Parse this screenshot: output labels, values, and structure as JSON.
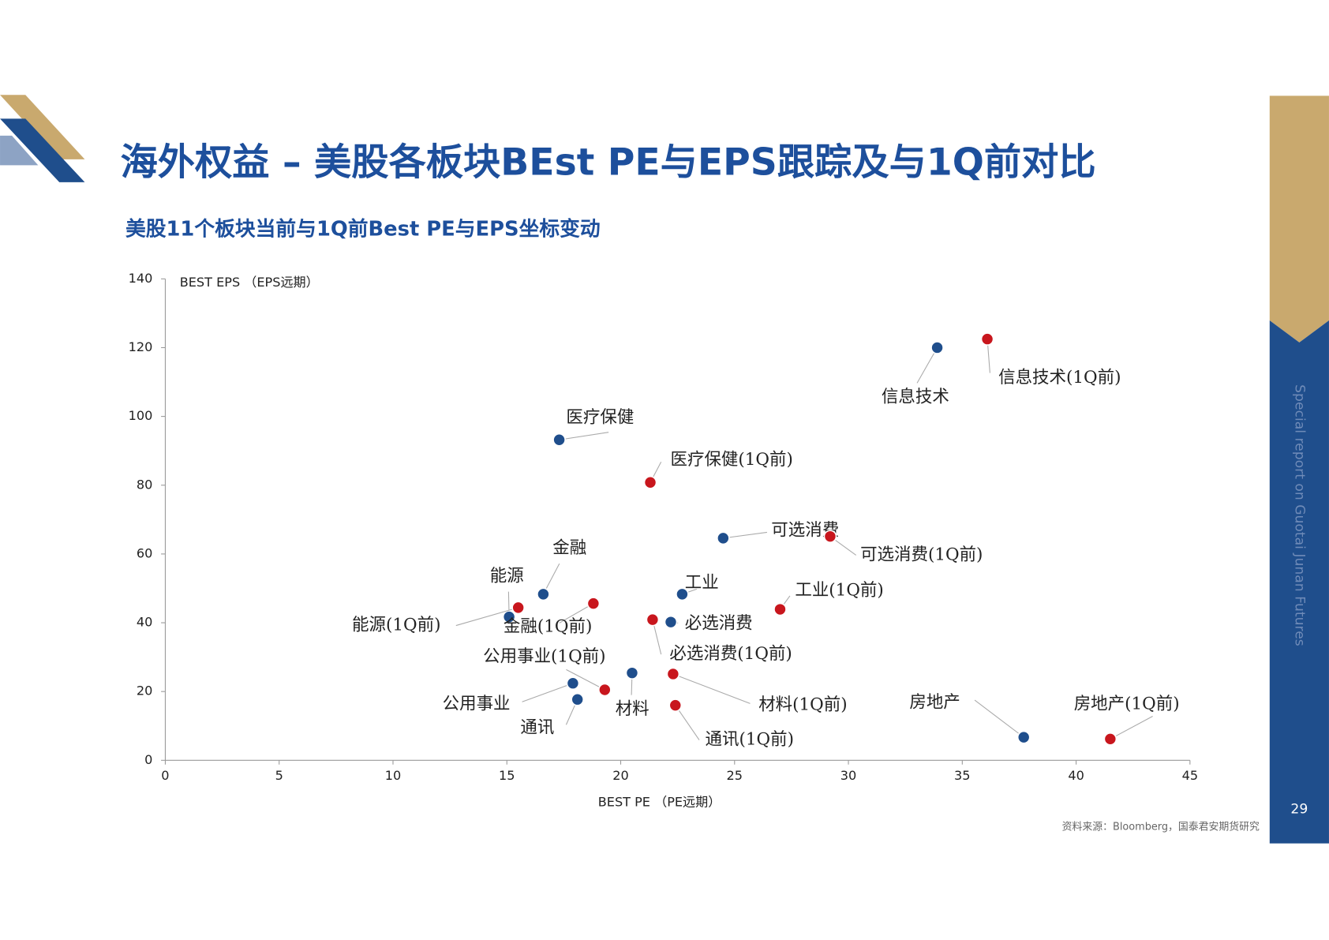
{
  "chart_data": {
    "type": "scatter",
    "title": "海外权益 – 美股各板块BEst PE与EPS跟踪及与1Q前对比",
    "subtitle": "美股11个板块当前与1Q前Best PE与EPS坐标变动",
    "x_label": "BEST PE （PE远期）",
    "y_label": "BEST EPS （EPS远期）",
    "source": "资料来源：Bloomberg，国泰君安期货研究",
    "page_number": "29",
    "side_text": "Special report on Guotai Junan Futures",
    "xlim": [
      0,
      45
    ],
    "xticks": [
      0,
      5,
      10,
      15,
      20,
      25,
      30,
      35,
      40,
      45
    ],
    "ylim": [
      0,
      140
    ],
    "yticks": [
      0,
      20,
      40,
      60,
      80,
      100,
      120,
      140
    ],
    "grid": false,
    "series": [
      {
        "color": "#1f4e8c",
        "labels": [
          "信息技术",
          "医疗保健",
          "可选消费",
          "金融",
          "能源",
          "工业",
          "必选消费",
          "公用事业",
          "材料",
          "通讯",
          "房地产"
        ],
        "x": [
          33.9,
          17.3,
          24.5,
          16.6,
          15.1,
          22.7,
          22.2,
          17.9,
          20.5,
          18.1,
          37.7
        ],
        "values": [
          120.0,
          93.2,
          64.6,
          48.3,
          41.7,
          48.3,
          40.2,
          22.4,
          25.4,
          17.7,
          6.7
        ]
      },
      {
        "color": "#c8161d",
        "labels": [
          "信息技术(1Q前)",
          "医疗保健(1Q前)",
          "可选消费(1Q前)",
          "工业(1Q前)",
          "能源(1Q前)",
          "金融(1Q前)",
          "必选消费(1Q前)",
          "公用事业(1Q前)",
          "材料(1Q前)",
          "通讯(1Q前)",
          "房地产(1Q前)"
        ],
        "x": [
          36.1,
          21.3,
          29.2,
          27.0,
          15.5,
          18.8,
          21.4,
          19.3,
          22.3,
          22.4,
          41.5
        ],
        "values": [
          122.5,
          80.8,
          65.1,
          43.9,
          44.4,
          45.6,
          40.9,
          20.5,
          25.1,
          16.0,
          6.2
        ]
      }
    ]
  }
}
